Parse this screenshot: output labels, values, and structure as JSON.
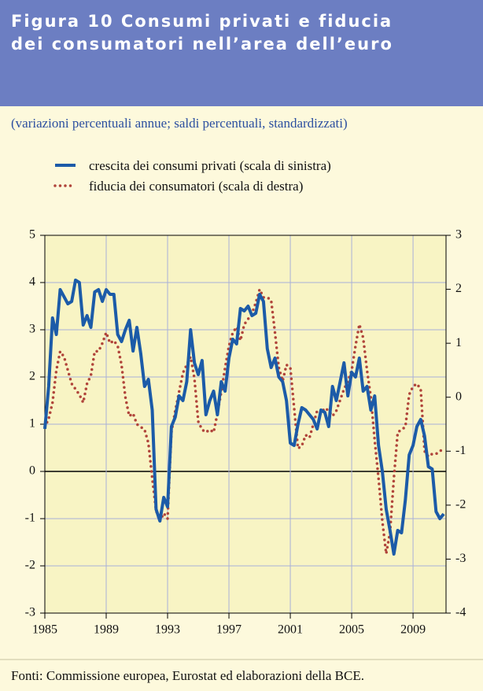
{
  "chart_data": {
    "type": "line",
    "title": [
      "Figura 10 Consumi privati e fiducia",
      "dei consumatori nell’area dell’euro"
    ],
    "subtitle": "(variazioni percentuali annue; saldi percentuali, standardizzati)",
    "source": "Fonti: Commissione europea, Eurostat ed elaborazioni della BCE.",
    "x": [
      1985,
      1985.25,
      1985.5,
      1985.75,
      1986,
      1986.25,
      1986.5,
      1986.75,
      1987,
      1987.25,
      1987.5,
      1987.75,
      1988,
      1988.25,
      1988.5,
      1988.75,
      1989,
      1989.25,
      1989.5,
      1989.75,
      1990,
      1990.25,
      1990.5,
      1990.75,
      1991,
      1991.25,
      1991.5,
      1991.75,
      1992,
      1992.25,
      1992.5,
      1992.75,
      1993,
      1993.25,
      1993.5,
      1993.75,
      1994,
      1994.25,
      1994.5,
      1994.75,
      1995,
      1995.25,
      1995.5,
      1995.75,
      1996,
      1996.25,
      1996.5,
      1996.75,
      1997,
      1997.25,
      1997.5,
      1997.75,
      1998,
      1998.25,
      1998.5,
      1998.75,
      1999,
      1999.25,
      1999.5,
      1999.75,
      2000,
      2000.25,
      2000.5,
      2000.75,
      2001,
      2001.25,
      2001.5,
      2001.75,
      2002,
      2002.25,
      2002.5,
      2002.75,
      2003,
      2003.25,
      2003.5,
      2003.75,
      2004,
      2004.25,
      2004.5,
      2004.75,
      2005,
      2005.25,
      2005.5,
      2005.75,
      2006,
      2006.25,
      2006.5,
      2006.75,
      2007,
      2007.25,
      2007.5,
      2007.75,
      2008,
      2008.25,
      2008.5,
      2008.75,
      2009,
      2009.25,
      2009.5,
      2009.75,
      2010,
      2010.25,
      2010.5,
      2010.75,
      2011
    ],
    "series": [
      {
        "name": "crescita dei consumi privati (scala di sinistra)",
        "color": "#1c5ba8",
        "style": "solid",
        "axis": "y",
        "values": [
          0.9,
          1.8,
          3.25,
          2.9,
          3.85,
          3.7,
          3.55,
          3.6,
          4.05,
          4.0,
          3.1,
          3.3,
          3.05,
          3.8,
          3.85,
          3.6,
          3.85,
          3.75,
          3.75,
          2.9,
          2.75,
          3.0,
          3.2,
          2.55,
          3.05,
          2.5,
          1.8,
          1.95,
          1.3,
          -0.8,
          -1.05,
          -0.55,
          -0.75,
          0.95,
          1.15,
          1.6,
          1.5,
          1.9,
          3.0,
          2.3,
          2.05,
          2.35,
          1.2,
          1.5,
          1.7,
          1.2,
          1.9,
          1.7,
          2.4,
          2.8,
          2.7,
          3.45,
          3.4,
          3.5,
          3.3,
          3.35,
          3.75,
          3.6,
          2.6,
          2.2,
          2.4,
          2.0,
          1.9,
          1.5,
          0.6,
          0.55,
          1.0,
          1.35,
          1.3,
          1.2,
          1.1,
          0.9,
          1.3,
          1.25,
          0.95,
          1.8,
          1.5,
          1.9,
          2.3,
          1.6,
          2.1,
          2.0,
          2.4,
          1.7,
          1.8,
          1.3,
          1.6,
          0.55,
          0.0,
          -0.8,
          -1.25,
          -1.75,
          -1.25,
          -1.3,
          -0.6,
          0.35,
          0.55,
          0.95,
          1.1,
          0.75,
          0.1,
          0.05,
          -0.85,
          -1.0,
          -0.9
        ]
      },
      {
        "name": "fiducia dei consumatori (scala di destra)",
        "color": "#b0443a",
        "style": "dotted",
        "axis": "y2",
        "values": [
          -0.55,
          -0.4,
          -0.1,
          0.5,
          0.85,
          0.75,
          0.5,
          0.25,
          0.15,
          0.05,
          -0.1,
          0.25,
          0.4,
          0.85,
          0.85,
          1.0,
          1.2,
          1.0,
          1.05,
          0.95,
          0.6,
          0.0,
          -0.35,
          -0.3,
          -0.5,
          -0.55,
          -0.6,
          -0.85,
          -1.5,
          -2.1,
          -2.3,
          -2.15,
          -2.25,
          -0.65,
          -0.25,
          0.1,
          0.45,
          0.6,
          0.75,
          0.35,
          -0.45,
          -0.6,
          -0.65,
          -0.6,
          -0.65,
          -0.3,
          0.1,
          0.55,
          0.95,
          1.2,
          1.3,
          1.05,
          1.35,
          1.45,
          1.55,
          1.75,
          2.0,
          1.85,
          1.85,
          1.8,
          1.2,
          0.55,
          0.3,
          0.6,
          0.55,
          -0.2,
          -0.95,
          -0.9,
          -0.7,
          -0.75,
          -0.5,
          -0.25,
          -0.3,
          -0.2,
          -0.25,
          -0.35,
          -0.25,
          -0.05,
          0.15,
          0.3,
          0.5,
          0.95,
          1.35,
          1.1,
          0.5,
          0.0,
          -0.8,
          -1.5,
          -2.3,
          -2.9,
          -2.5,
          -1.5,
          -0.65,
          -0.6,
          -0.55,
          0.05,
          0.2,
          0.25,
          0.15,
          -1.0,
          -1.1,
          -1.05,
          -1.05,
          -1.0,
          -0.95
        ]
      }
    ],
    "xlim": [
      1985,
      2011.15
    ],
    "xticks": [
      1985,
      1989,
      1993,
      1997,
      2001,
      2005,
      2009
    ],
    "ylim": [
      -3,
      5
    ],
    "yticks": [
      -3,
      -2,
      -1,
      0,
      1,
      2,
      3,
      4,
      5
    ],
    "y2lim": [
      -4,
      3
    ],
    "y2ticks": [
      -4,
      -3,
      -2,
      -1,
      0,
      1,
      2,
      3
    ],
    "grid": true
  }
}
